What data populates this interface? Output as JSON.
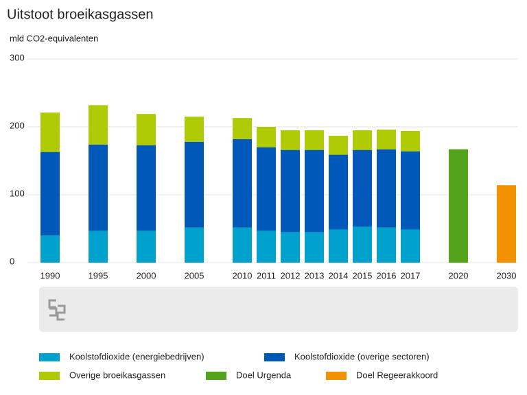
{
  "chart_data": {
    "type": "stacked-bar",
    "title": "Uitstoot broeikasgassen",
    "y_label": "mld CO2-equivalenten",
    "categories": [
      "1990",
      null,
      "1995",
      null,
      "2000",
      null,
      "2005",
      null,
      "2010",
      "2011",
      "2012",
      "2013",
      "2014",
      "2015",
      "2016",
      "2017",
      null,
      "2020",
      null,
      "2030"
    ],
    "series": [
      {
        "name": "Koolstofdioxide (energiebedrijven)",
        "color": "#00a1cd",
        "values": [
          40,
          null,
          47,
          null,
          47,
          null,
          52,
          null,
          52,
          47,
          45,
          45,
          49,
          53,
          52,
          49,
          null,
          null,
          null,
          null
        ]
      },
      {
        "name": "Koolstofdioxide (overige sectoren)",
        "color": "#0058b8",
        "values": [
          123,
          null,
          127,
          null,
          126,
          null,
          126,
          null,
          130,
          123,
          121,
          121,
          110,
          113,
          115,
          115,
          null,
          null,
          null,
          null
        ]
      },
      {
        "name": "Overige broeikasgassen",
        "color": "#afcb05",
        "values": [
          58,
          null,
          58,
          null,
          46,
          null,
          37,
          null,
          31,
          30,
          29,
          29,
          28,
          29,
          29,
          30,
          null,
          null,
          null,
          null
        ]
      },
      {
        "name": "Doel Urgenda",
        "color": "#53a31d",
        "values": [
          null,
          null,
          null,
          null,
          null,
          null,
          null,
          null,
          null,
          null,
          null,
          null,
          null,
          null,
          null,
          null,
          null,
          167,
          null,
          null
        ]
      },
      {
        "name": "Doel Regeerakkoord",
        "color": "#f39200",
        "values": [
          null,
          null,
          null,
          null,
          null,
          null,
          null,
          null,
          null,
          null,
          null,
          null,
          null,
          null,
          null,
          null,
          null,
          null,
          null,
          114
        ]
      }
    ],
    "ylim": [
      0,
      300
    ],
    "yticks": [
      0,
      100,
      200,
      300
    ],
    "grid": true
  }
}
